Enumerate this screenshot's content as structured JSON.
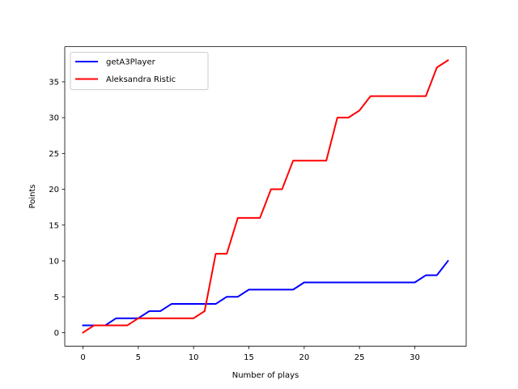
{
  "chart_data": {
    "type": "line",
    "xlabel": "Number of plays",
    "ylabel": "Points",
    "xlim": [
      -1.65,
      34.65
    ],
    "ylim": [
      -1.9,
      39.9
    ],
    "xticks": [
      0,
      5,
      10,
      15,
      20,
      25,
      30
    ],
    "yticks": [
      0,
      5,
      10,
      15,
      20,
      25,
      30,
      35
    ],
    "grid": false,
    "legend_position": "top-left",
    "x": [
      0,
      1,
      2,
      3,
      4,
      5,
      6,
      7,
      8,
      9,
      10,
      11,
      12,
      13,
      14,
      15,
      16,
      17,
      18,
      19,
      20,
      21,
      22,
      23,
      24,
      25,
      26,
      27,
      28,
      29,
      30,
      31,
      32,
      33
    ],
    "series": [
      {
        "name": "getA3Player",
        "color": "#0000ff",
        "values": [
          1,
          1,
          1,
          2,
          2,
          2,
          3,
          3,
          4,
          4,
          4,
          4,
          4,
          5,
          5,
          6,
          6,
          6,
          6,
          6,
          7,
          7,
          7,
          7,
          7,
          7,
          7,
          7,
          7,
          7,
          7,
          8,
          8,
          10
        ]
      },
      {
        "name": "Aleksandra Ristic",
        "color": "#ff0000",
        "values": [
          0,
          1,
          1,
          1,
          1,
          2,
          2,
          2,
          2,
          2,
          2,
          3,
          11,
          11,
          16,
          16,
          16,
          20,
          20,
          24,
          24,
          24,
          24,
          30,
          30,
          31,
          33,
          33,
          33,
          33,
          33,
          33,
          37,
          38
        ]
      }
    ]
  }
}
